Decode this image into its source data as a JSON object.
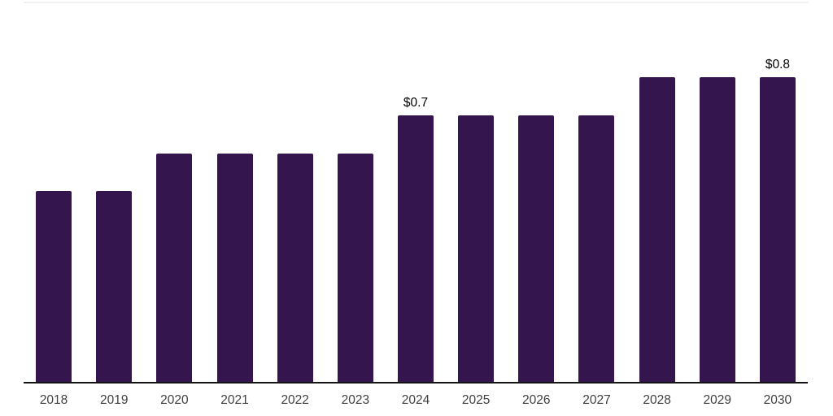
{
  "chart_data": {
    "type": "bar",
    "title": "",
    "xlabel": "",
    "ylabel": "",
    "categories": [
      "2018",
      "2019",
      "2020",
      "2021",
      "2022",
      "2023",
      "2024",
      "2025",
      "2026",
      "2027",
      "2028",
      "2029",
      "2030"
    ],
    "values": [
      0.5,
      0.5,
      0.6,
      0.6,
      0.6,
      0.6,
      0.7,
      0.7,
      0.7,
      0.7,
      0.8,
      0.8,
      0.8
    ],
    "unit_prefix": "$",
    "ylim": [
      0,
      1.0
    ],
    "grid": false,
    "legend": "none",
    "annotations": [
      {
        "category": "2024",
        "text": "$0.7"
      },
      {
        "category": "2030",
        "text": "$0.8"
      }
    ],
    "colors": {
      "bar": "#35154E",
      "axis_line": "#141414",
      "top_border": "#F1F1F4",
      "data_label": "#000000",
      "tick_label": "#404040"
    }
  }
}
